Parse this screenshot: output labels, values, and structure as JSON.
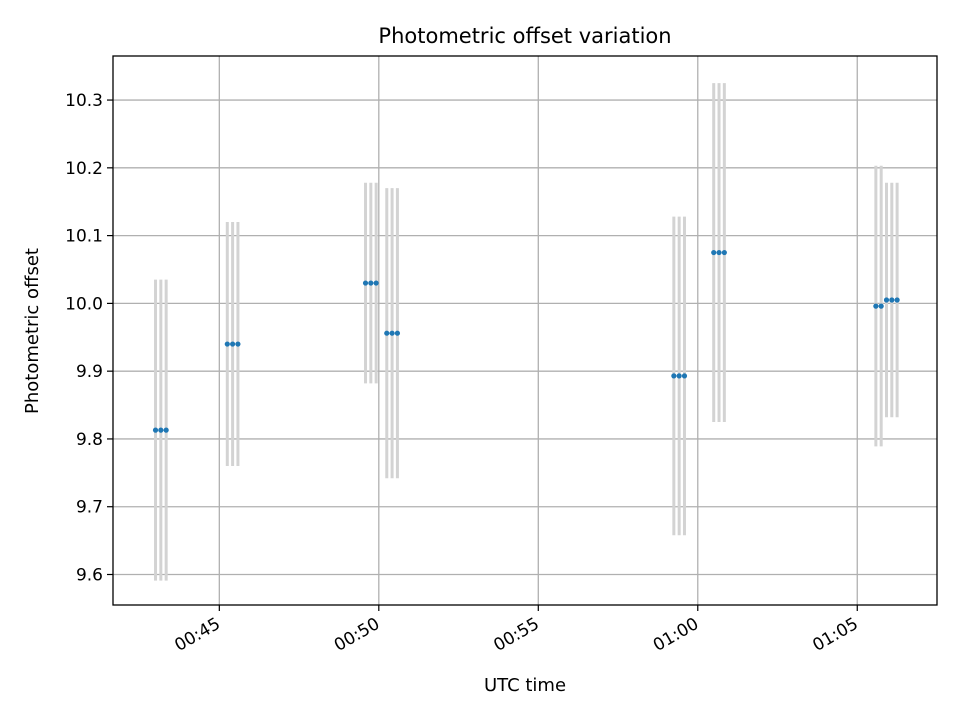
{
  "chart_data": {
    "type": "scatter",
    "title": "Photometric offset variation",
    "xlabel": "UTC time",
    "ylabel": "Photometric offset",
    "x_axis": {
      "kind": "time",
      "range": [
        "00:41:40",
        "01:07:30"
      ],
      "ticks": [
        "00:45",
        "00:50",
        "00:55",
        "01:00",
        "01:05"
      ]
    },
    "y_axis": {
      "range": [
        9.555,
        10.365
      ],
      "ticks": [
        "9.6",
        "9.7",
        "9.8",
        "9.9",
        "10.0",
        "10.1",
        "10.2",
        "10.3"
      ]
    },
    "grid": true,
    "colors": {
      "marker": "#1f77b4",
      "errorbar": "#d3d3d3",
      "grid": "#b0b0b0"
    },
    "series": [
      {
        "points": [
          {
            "t": "00:43:00",
            "y": 9.813,
            "err": 0.222
          },
          {
            "t": "00:43:10",
            "y": 9.813,
            "err": 0.222
          },
          {
            "t": "00:43:20",
            "y": 9.813,
            "err": 0.222
          },
          {
            "t": "00:45:15",
            "y": 9.94,
            "err": 0.18
          },
          {
            "t": "00:45:25",
            "y": 9.94,
            "err": 0.18
          },
          {
            "t": "00:45:35",
            "y": 9.94,
            "err": 0.18
          },
          {
            "t": "00:49:35",
            "y": 10.03,
            "err": 0.148
          },
          {
            "t": "00:49:45",
            "y": 10.03,
            "err": 0.148
          },
          {
            "t": "00:49:55",
            "y": 10.03,
            "err": 0.148
          },
          {
            "t": "00:50:15",
            "y": 9.956,
            "err": 0.214
          },
          {
            "t": "00:50:25",
            "y": 9.956,
            "err": 0.214
          },
          {
            "t": "00:50:35",
            "y": 9.956,
            "err": 0.214
          },
          {
            "t": "00:59:15",
            "y": 9.893,
            "err": 0.235
          },
          {
            "t": "00:59:25",
            "y": 9.893,
            "err": 0.235
          },
          {
            "t": "00:59:35",
            "y": 9.893,
            "err": 0.235
          },
          {
            "t": "01:00:30",
            "y": 10.075,
            "err": 0.25
          },
          {
            "t": "01:00:40",
            "y": 10.075,
            "err": 0.25
          },
          {
            "t": "01:00:50",
            "y": 10.075,
            "err": 0.25
          },
          {
            "t": "01:05:35",
            "y": 9.996,
            "err": 0.207
          },
          {
            "t": "01:05:45",
            "y": 9.996,
            "err": 0.207
          },
          {
            "t": "01:05:55",
            "y": 10.005,
            "err": 0.173
          },
          {
            "t": "01:06:05",
            "y": 10.005,
            "err": 0.173
          },
          {
            "t": "01:06:15",
            "y": 10.005,
            "err": 0.173
          }
        ]
      }
    ]
  }
}
